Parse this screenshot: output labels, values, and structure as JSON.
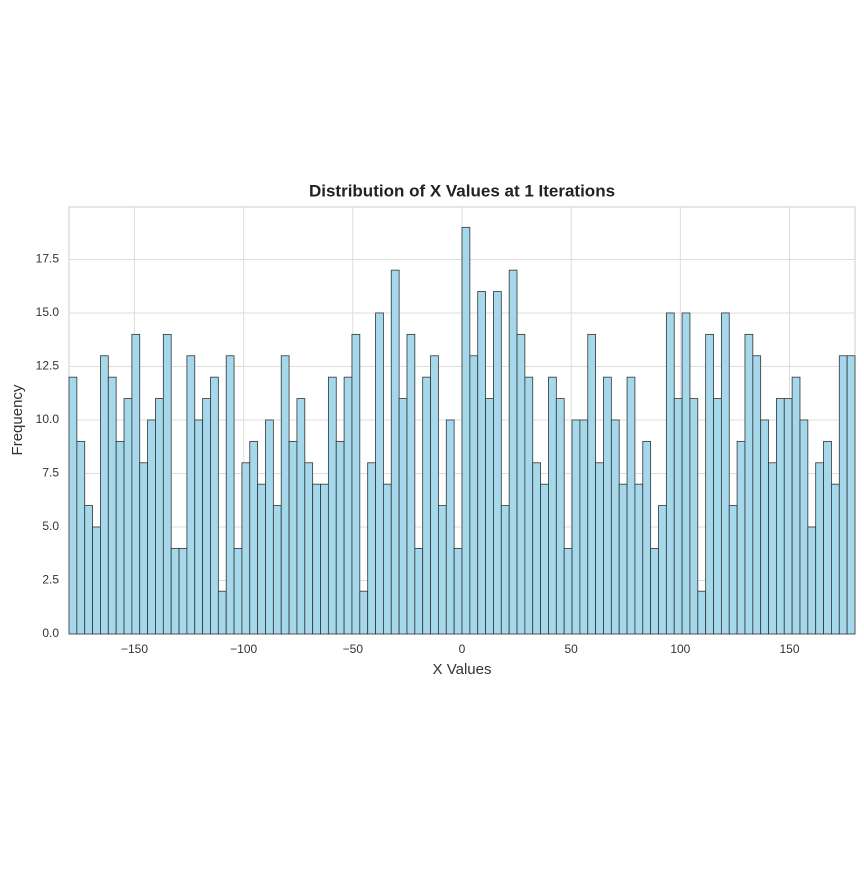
{
  "chart_data": {
    "type": "histogram",
    "title": "Distribution of X Values at 1 Iterations",
    "x_label": "X Values",
    "y_label": "Frequency",
    "bins": [
      -180,
      -176.4,
      -172.8,
      -169.2,
      -165.6,
      -162,
      -158.4,
      -154.8,
      -151.2,
      -147.6,
      -144,
      -140.4,
      -136.8,
      -133.2,
      -129.6,
      -126,
      -122.4,
      -118.8,
      -115.2,
      -111.6,
      -108,
      -104.4,
      -100.8,
      -97.2,
      -93.6,
      -90,
      -86.4,
      -82.8,
      -79.2,
      -75.6,
      -72,
      -68.4,
      -64.8,
      -61.2,
      -57.6,
      -54,
      -50.4,
      -46.8,
      -43.2,
      -39.6,
      -36,
      -32.4,
      -28.8,
      -25.2,
      -21.6,
      -18,
      -14.4,
      -10.8,
      -7.2,
      -3.6,
      0,
      3.6,
      7.2,
      10.8,
      14.4,
      18,
      21.6,
      25.2,
      28.8,
      32.4,
      36,
      39.6,
      43.2,
      46.8,
      50.4,
      54,
      57.6,
      61.2,
      64.8,
      68.4,
      72,
      75.6,
      79.2,
      82.8,
      86.4,
      90,
      93.6,
      97.2,
      100.8,
      104.4,
      108,
      111.6,
      115.2,
      118.8,
      122.4,
      126,
      129.6,
      133.2,
      136.8,
      140.4,
      144,
      147.6,
      151.2,
      154.8,
      158.4,
      162,
      165.6,
      169.2,
      172.8,
      176.4,
      180
    ],
    "values": [
      12,
      9,
      6,
      5,
      13,
      12,
      9,
      11,
      14,
      8,
      10,
      11,
      14,
      4,
      4,
      13,
      10,
      11,
      12,
      2,
      13,
      4,
      8,
      9,
      7,
      10,
      6,
      13,
      9,
      11,
      8,
      7,
      7,
      12,
      9,
      12,
      14,
      2,
      8,
      15,
      7,
      17,
      11,
      14,
      4,
      12,
      13,
      6,
      10,
      4,
      19,
      13,
      16,
      11,
      16,
      6,
      17,
      14,
      12,
      8,
      7,
      12,
      11,
      4,
      10,
      10,
      14,
      8,
      12,
      10,
      7,
      12,
      7,
      9,
      4,
      6,
      15,
      11,
      15,
      11,
      2,
      14,
      11,
      15,
      6,
      9,
      14,
      13,
      10,
      8,
      11,
      11,
      12,
      10,
      5,
      8,
      9,
      7,
      13,
      13
    ],
    "color": "#a6d8ec",
    "edgecolor": "#333333",
    "xlim": [
      -180,
      180
    ],
    "ylim": [
      0,
      19.95
    ],
    "xticks": [
      {
        "value": -150,
        "label": "−150"
      },
      {
        "value": -100,
        "label": "−100"
      },
      {
        "value": -50,
        "label": "−50"
      },
      0,
      50,
      100,
      150
    ],
    "yticks": [
      {
        "value": 0,
        "label": "0.0"
      },
      2.5,
      {
        "value": 5,
        "label": "5.0"
      },
      7.5,
      {
        "value": 10,
        "label": "10.0"
      },
      12.5,
      {
        "value": 15,
        "label": "15.0"
      },
      17.5
    ],
    "grid": true
  }
}
